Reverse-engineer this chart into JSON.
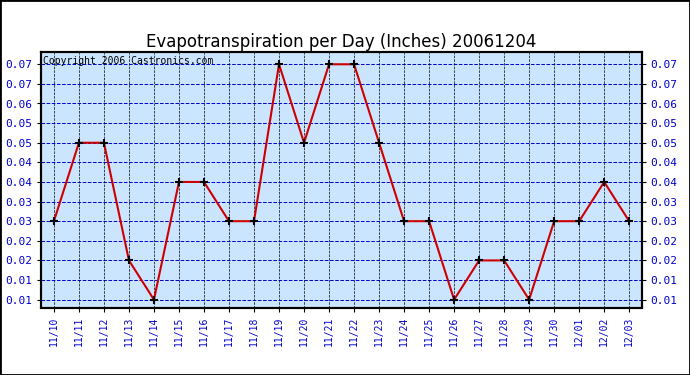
{
  "title": "Evapotranspiration per Day (Inches) 20061204",
  "copyright": "Copyright 2006 Castronics.com",
  "x_labels": [
    "11/10",
    "11/11",
    "11/12",
    "11/13",
    "11/14",
    "11/15",
    "11/16",
    "11/17",
    "11/18",
    "11/19",
    "11/20",
    "11/21",
    "11/22",
    "11/23",
    "11/24",
    "11/25",
    "11/26",
    "11/27",
    "11/28",
    "11/29",
    "11/30",
    "12/01",
    "12/02",
    "12/03"
  ],
  "y_values": [
    0.03,
    0.05,
    0.05,
    0.02,
    0.01,
    0.04,
    0.04,
    0.03,
    0.03,
    0.07,
    0.05,
    0.07,
    0.07,
    0.05,
    0.03,
    0.03,
    0.01,
    0.02,
    0.02,
    0.01,
    0.03,
    0.03,
    0.04,
    0.03
  ],
  "line_color": "#cc0000",
  "marker": "+",
  "marker_color": "#000000",
  "background_color": "#cce5ff",
  "grid_color_blue": "#0000cc",
  "grid_color_black": "#000000",
  "tick_label_color": "#0000cc",
  "border_color": "#000000",
  "y_min": 0.008,
  "y_max": 0.073,
  "y_tick_positions": [
    0.01,
    0.015,
    0.02,
    0.025,
    0.03,
    0.035,
    0.04,
    0.045,
    0.05,
    0.055,
    0.06,
    0.065,
    0.07
  ],
  "y_tick_labels": [
    "0.01",
    "0.01",
    "0.02",
    "0.02",
    "0.03",
    "0.03",
    "0.04",
    "0.04",
    "0.05",
    "0.05",
    "0.06",
    "0.07",
    "0.07"
  ],
  "title_fontsize": 12,
  "copyright_fontsize": 7,
  "tick_fontsize": 8,
  "xtick_fontsize": 7
}
